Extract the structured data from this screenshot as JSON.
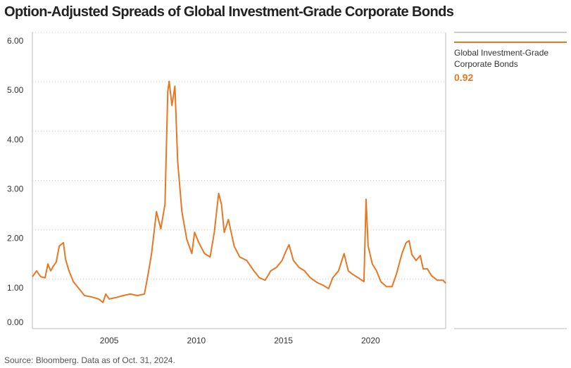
{
  "chart_data": {
    "type": "line",
    "title": "Option-Adjusted Spreads of Global Investment-Grade Corporate Bonds",
    "source": "Source: Bloomberg. Data as of Oct. 31, 2024.",
    "x": [
      2001.09,
      2001.33,
      2001.57,
      2001.82,
      2001.98,
      2002.14,
      2002.3,
      2002.46,
      2002.63,
      2002.87,
      2002.99,
      2003.19,
      2003.44,
      2003.76,
      2004.08,
      2004.49,
      2004.89,
      2005.14,
      2005.3,
      2005.5,
      2005.9,
      2006.31,
      2006.71,
      2007.12,
      2007.52,
      2007.73,
      2007.93,
      2008.21,
      2008.46,
      2008.7,
      2008.86,
      2008.94,
      2009.1,
      2009.27,
      2009.43,
      2009.67,
      2009.95,
      2010.24,
      2010.4,
      2010.64,
      2010.97,
      2011.29,
      2011.53,
      2011.78,
      2011.94,
      2012.1,
      2012.34,
      2012.67,
      2012.99,
      2013.39,
      2013.8,
      2014.12,
      2014.45,
      2014.77,
      2015.1,
      2015.42,
      2015.62,
      2015.82,
      2016.07,
      2016.39,
      2016.71,
      2017.04,
      2017.44,
      2017.77,
      2018.09,
      2018.33,
      2018.66,
      2018.98,
      2019.22,
      2019.47,
      2019.79,
      2020.12,
      2020.24,
      2020.36,
      2020.6,
      2020.84,
      2021.09,
      2021.41,
      2021.73,
      2021.98,
      2022.3,
      2022.54,
      2022.71,
      2022.87,
      2023.11,
      2023.35,
      2023.52,
      2023.76,
      2024.0,
      2024.33,
      2024.65,
      2024.81
    ],
    "series": [
      {
        "name": "Global Investment-Grade Corporate Bonds",
        "color": "#e87722",
        "values": [
          1.05,
          1.17,
          1.05,
          1.03,
          1.31,
          1.17,
          1.27,
          1.35,
          1.67,
          1.74,
          1.41,
          1.17,
          0.95,
          0.81,
          0.67,
          0.64,
          0.6,
          0.53,
          0.7,
          0.6,
          0.63,
          0.67,
          0.7,
          0.67,
          0.7,
          1.1,
          1.52,
          2.37,
          2.02,
          2.52,
          4.8,
          5.01,
          4.52,
          4.91,
          3.38,
          2.37,
          1.81,
          1.52,
          1.95,
          1.74,
          1.52,
          1.45,
          1.95,
          2.74,
          2.52,
          1.95,
          2.21,
          1.67,
          1.45,
          1.38,
          1.17,
          1.03,
          0.98,
          1.17,
          1.24,
          1.38,
          1.55,
          1.7,
          1.38,
          1.24,
          1.17,
          1.03,
          0.93,
          0.88,
          0.81,
          1.03,
          1.17,
          1.52,
          1.17,
          1.1,
          1.03,
          0.95,
          2.62,
          1.67,
          1.31,
          1.17,
          0.95,
          0.85,
          0.85,
          1.1,
          1.52,
          1.74,
          1.78,
          1.5,
          1.38,
          1.48,
          1.21,
          1.21,
          1.07,
          0.98,
          0.98,
          0.92
        ]
      }
    ],
    "xlim": [
      2001.09,
      2024.81
    ],
    "xticks": [
      {
        "value": 2005.5,
        "label": "2005"
      },
      {
        "value": 2010.5,
        "label": "2010"
      },
      {
        "value": 2015.5,
        "label": "2015"
      },
      {
        "value": 2020.5,
        "label": "2020"
      }
    ],
    "ylim": [
      0,
      6
    ],
    "yticks": [
      {
        "value": 0,
        "label": "0.00"
      },
      {
        "value": 1,
        "label": "1.00"
      },
      {
        "value": 2,
        "label": "2.00"
      },
      {
        "value": 3,
        "label": "3.00"
      },
      {
        "value": 4,
        "label": "4.00"
      },
      {
        "value": 5,
        "label": "5.00"
      },
      {
        "value": 6,
        "label": "6.00"
      }
    ],
    "grid": true
  }
}
